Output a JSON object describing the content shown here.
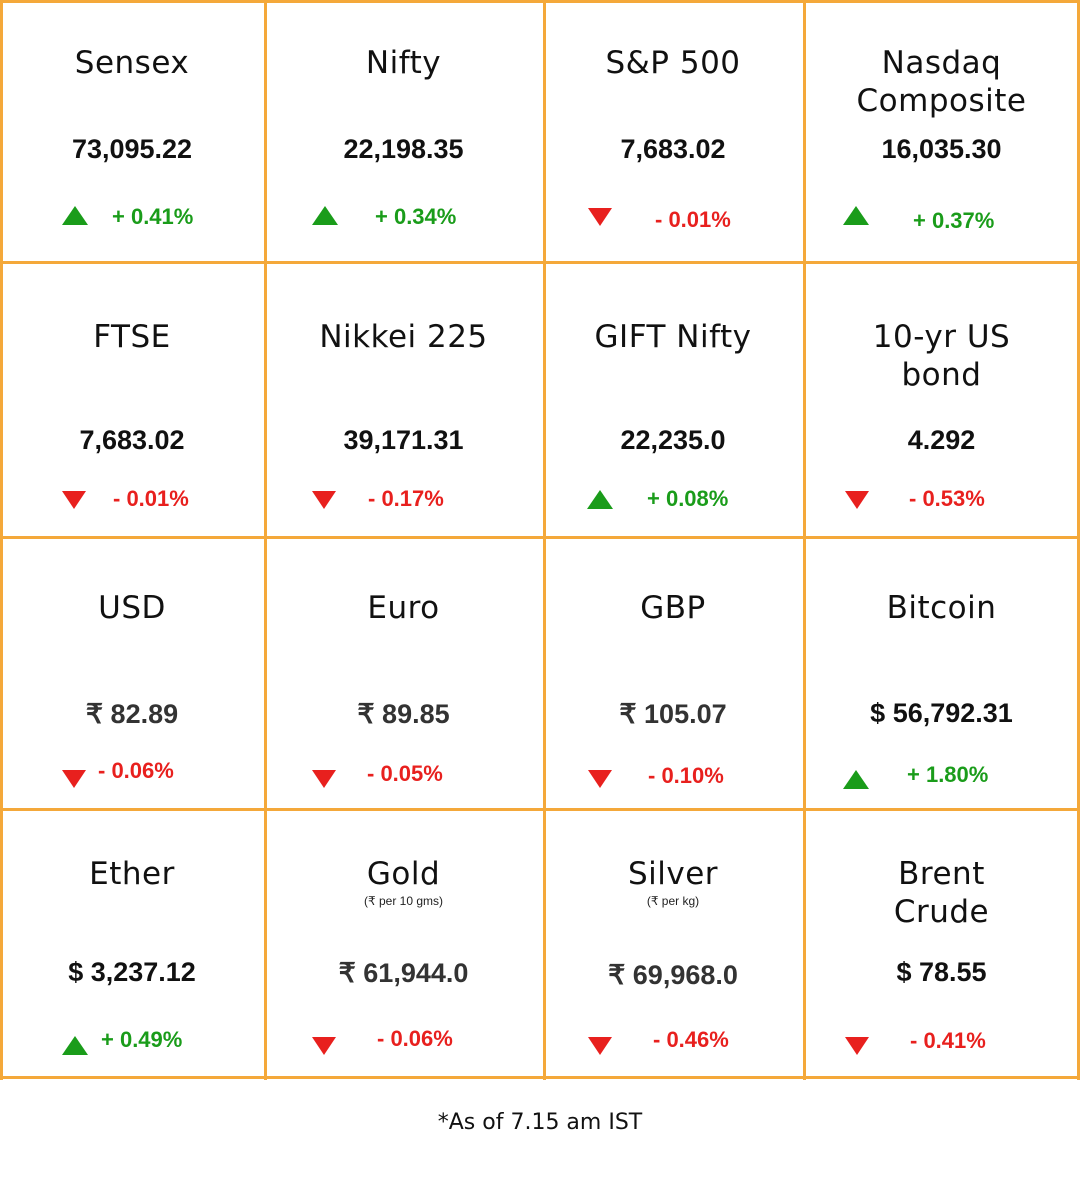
{
  "tiles": [
    {
      "name": "Sensex",
      "value": "73,095.22",
      "dir": "up",
      "change": "+ 0.41%"
    },
    {
      "name": "Nifty",
      "value": "22,198.35",
      "dir": "up",
      "change": "+ 0.34%"
    },
    {
      "name": "S&P 500",
      "value": "7,683.02",
      "dir": "down",
      "change": "- 0.01%"
    },
    {
      "name": "Nasdaq Composite",
      "value": "16,035.30",
      "dir": "up",
      "change": "+ 0.37%"
    },
    {
      "name": "FTSE",
      "value": "7,683.02",
      "dir": "down",
      "change": "- 0.01%"
    },
    {
      "name": "Nikkei 225",
      "value": "39,171.31",
      "dir": "down",
      "change": "- 0.17%"
    },
    {
      "name": "GIFT Nifty",
      "value": "22,235.0",
      "dir": "up",
      "change": "+ 0.08%"
    },
    {
      "name": "10-yr US bond",
      "value": "4.292",
      "dir": "down",
      "change": "- 0.53%"
    },
    {
      "name": "USD",
      "value": "₹ 82.89",
      "dir": "down",
      "change": "- 0.06%"
    },
    {
      "name": "Euro",
      "value": "₹ 89.85",
      "dir": "down",
      "change": "- 0.05%"
    },
    {
      "name": "GBP",
      "value": "₹ 105.07",
      "dir": "down",
      "change": "- 0.10%"
    },
    {
      "name": "Bitcoin",
      "value": "$ 56,792.31",
      "dir": "up",
      "change": "+ 1.80%"
    },
    {
      "name": "Ether",
      "value": "$ 3,237.12",
      "dir": "up",
      "change": "+ 0.49%"
    },
    {
      "name": "Gold",
      "unit": "(₹ per 10 gms)",
      "value": "₹ 61,944.0",
      "dir": "down",
      "change": "- 0.06%"
    },
    {
      "name": "Silver",
      "unit": "(₹ per kg)",
      "value": "₹ 69,968.0",
      "dir": "down",
      "change": "- 0.46%"
    },
    {
      "name": "Brent Crude",
      "value": "$ 78.55",
      "dir": "down",
      "change": "- 0.41%"
    }
  ],
  "footnote": "*As of 7.15 am IST",
  "colors": {
    "border": "#f4a83a",
    "up": "#1a9c1a",
    "down": "#e8201e"
  }
}
